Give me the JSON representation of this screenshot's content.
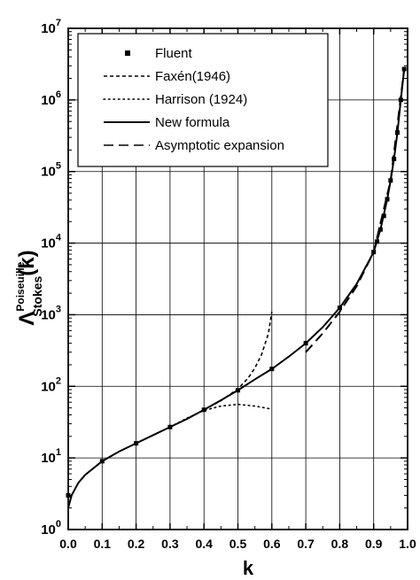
{
  "chart_data": {
    "type": "line",
    "xlabel": "k",
    "ylabel": {
      "main": "Λ",
      "superscript": "Poiseuille",
      "subscript": "Stokes",
      "suffix": "(k)"
    },
    "xlim": [
      0.0,
      1.0
    ],
    "ylim": [
      1,
      10000000
    ],
    "yscale": "log",
    "grid": true,
    "legend_position": "top-left",
    "x_ticks": [
      "0.0",
      "0.1",
      "0.2",
      "0.3",
      "0.4",
      "0.5",
      "0.6",
      "0.7",
      "0.8",
      "0.9",
      "1.0"
    ],
    "y_ticks": [
      {
        "base": "10",
        "exp": "0"
      },
      {
        "base": "10",
        "exp": "1"
      },
      {
        "base": "10",
        "exp": "2"
      },
      {
        "base": "10",
        "exp": "3"
      },
      {
        "base": "10",
        "exp": "4"
      },
      {
        "base": "10",
        "exp": "5"
      },
      {
        "base": "10",
        "exp": "6"
      },
      {
        "base": "10",
        "exp": "7"
      }
    ],
    "series": [
      {
        "name": "Fluent",
        "style": "markers",
        "x": [
          0.0,
          0.1,
          0.2,
          0.3,
          0.4,
          0.5,
          0.6,
          0.7,
          0.8,
          0.9,
          0.91,
          0.92,
          0.93,
          0.94,
          0.95,
          0.96,
          0.97,
          0.98,
          0.99
        ],
        "y": [
          3,
          9,
          16,
          27,
          47,
          88,
          175,
          400,
          1250,
          7500,
          10500,
          15500,
          24000,
          41000,
          75000,
          150000,
          350000,
          1000000,
          2700000
        ]
      },
      {
        "name": "Faxén(1946)",
        "style": "short-dash",
        "x": [
          0.4,
          0.45,
          0.5,
          0.53,
          0.55,
          0.57,
          0.59,
          0.6
        ],
        "y": [
          47,
          63,
          92,
          130,
          180,
          280,
          550,
          1100
        ]
      },
      {
        "name": "Harrison (1924)",
        "style": "dotted",
        "x": [
          0.3,
          0.35,
          0.4,
          0.45,
          0.5,
          0.55,
          0.6
        ],
        "y": [
          27,
          36,
          46,
          53,
          56,
          53,
          48
        ]
      },
      {
        "name": "New formula",
        "style": "solid",
        "x": [
          0.0,
          0.01,
          0.03,
          0.05,
          0.1,
          0.15,
          0.2,
          0.25,
          0.3,
          0.35,
          0.4,
          0.45,
          0.5,
          0.55,
          0.6,
          0.65,
          0.7,
          0.75,
          0.8,
          0.85,
          0.9,
          0.92,
          0.94,
          0.95,
          0.96,
          0.97,
          0.98,
          0.99
        ],
        "y": [
          2,
          3,
          4.5,
          5.8,
          9,
          12.3,
          16,
          20.8,
          27,
          35,
          47,
          64,
          88,
          125,
          175,
          260,
          400,
          670,
          1250,
          2700,
          7500,
          15500,
          41000,
          75000,
          150000,
          350000,
          1000000,
          2700000
        ]
      },
      {
        "name": "Asymptotic expansion",
        "style": "long-dash",
        "x": [
          0.7,
          0.75,
          0.8,
          0.85,
          0.9,
          0.95,
          0.99
        ],
        "y": [
          300,
          550,
          1100,
          2500,
          7500,
          75000,
          2700000
        ]
      }
    ]
  }
}
